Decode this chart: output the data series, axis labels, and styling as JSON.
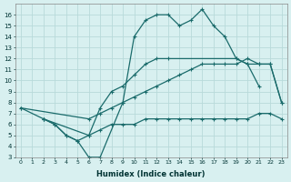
{
  "xlabel": "Humidex (Indice chaleur)",
  "bg_color": "#d8f0f0",
  "grid_color": "#b8dada",
  "line_color": "#1a6b6b",
  "xlim": [
    -0.5,
    23.5
  ],
  "ylim": [
    3,
    17
  ],
  "xticks": [
    0,
    1,
    2,
    3,
    4,
    5,
    6,
    7,
    8,
    9,
    10,
    11,
    12,
    13,
    14,
    15,
    16,
    17,
    18,
    19,
    20,
    21,
    22,
    23
  ],
  "yticks": [
    3,
    4,
    5,
    6,
    7,
    8,
    9,
    10,
    11,
    12,
    13,
    14,
    15,
    16
  ],
  "line1_x": [
    0,
    2,
    3,
    4,
    5,
    6,
    7,
    9,
    10,
    11,
    12,
    13,
    14,
    15,
    16,
    17,
    18,
    19,
    20,
    21
  ],
  "line1_y": [
    7.5,
    6.5,
    6.0,
    5.0,
    4.5,
    3.0,
    3.0,
    8.0,
    14.0,
    15.5,
    16.0,
    16.0,
    15.0,
    15.5,
    16.5,
    15.0,
    14.0,
    12.0,
    11.5,
    9.5
  ],
  "line2_x": [
    2,
    3,
    4,
    5,
    6,
    7,
    8,
    9,
    10,
    11,
    12,
    13,
    19,
    20,
    21,
    22,
    23
  ],
  "line2_y": [
    6.5,
    6.0,
    5.0,
    4.5,
    5.0,
    7.5,
    9.0,
    9.5,
    10.5,
    11.5,
    12.0,
    12.0,
    12.0,
    11.5,
    11.5,
    11.5,
    8.0
  ],
  "line3_x": [
    0,
    6,
    7,
    8,
    9,
    10,
    11,
    12,
    13,
    14,
    15,
    16,
    17,
    18,
    19,
    20,
    21,
    22,
    23
  ],
  "line3_y": [
    7.5,
    6.5,
    7.0,
    7.5,
    8.0,
    8.5,
    9.0,
    9.5,
    10.0,
    10.5,
    11.0,
    11.5,
    11.5,
    11.5,
    11.5,
    12.0,
    11.5,
    11.5,
    8.0
  ],
  "line4_x": [
    2,
    6,
    7,
    8,
    9,
    10,
    11,
    12,
    13,
    14,
    15,
    16,
    17,
    18,
    19,
    20,
    21,
    22,
    23
  ],
  "line4_y": [
    6.5,
    5.0,
    5.5,
    6.0,
    6.0,
    6.0,
    6.5,
    6.5,
    6.5,
    6.5,
    6.5,
    6.5,
    6.5,
    6.5,
    6.5,
    6.5,
    7.0,
    7.0,
    6.5
  ]
}
